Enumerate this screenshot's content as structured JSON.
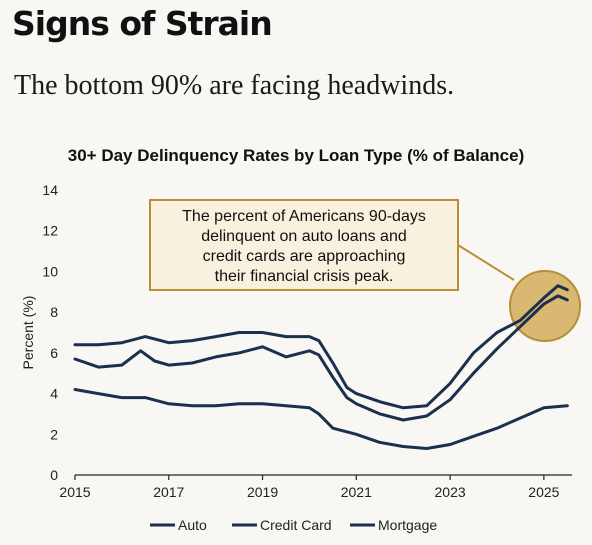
{
  "headline": "Signs of Strain",
  "subheadline": "The bottom 90% are facing headwinds.",
  "colors": {
    "line": "#1b2f4e",
    "highlight_fill": "#d4ad5a",
    "highlight_stroke": "#b88f38",
    "callout_border": "#b88f38",
    "callout_fill": "#f7f1de"
  },
  "callout": {
    "lines": [
      "The percent of Americans 90-days",
      "delinquent on auto loans and",
      "credit cards are approaching",
      "their financial crisis peak."
    ]
  },
  "chart_data": {
    "type": "line",
    "title": "30+ Day Delinquency Rates by Loan Type (% of Balance)",
    "xlabel": "",
    "ylabel": "Percent (%)",
    "xlim": [
      2015,
      2025.6
    ],
    "ylim": [
      0,
      14
    ],
    "x_ticks": [
      "2015",
      "2017",
      "2019",
      "2021",
      "2023",
      "2025"
    ],
    "y_ticks": [
      "0",
      "2",
      "4",
      "6",
      "8",
      "10",
      "12",
      "14"
    ],
    "grid": false,
    "legend_position": "bottom",
    "series": [
      {
        "name": "Auto",
        "points": [
          [
            2015,
            6.4
          ],
          [
            2015.5,
            6.4
          ],
          [
            2016,
            6.5
          ],
          [
            2016.5,
            6.8
          ],
          [
            2017,
            6.5
          ],
          [
            2017.5,
            6.6
          ],
          [
            2018,
            6.8
          ],
          [
            2018.5,
            7.0
          ],
          [
            2019,
            7.0
          ],
          [
            2019.5,
            6.8
          ],
          [
            2020,
            6.8
          ],
          [
            2020.2,
            6.6
          ],
          [
            2020.5,
            5.5
          ],
          [
            2020.8,
            4.3
          ],
          [
            2021,
            4.0
          ],
          [
            2021.5,
            3.6
          ],
          [
            2022,
            3.3
          ],
          [
            2022.5,
            3.4
          ],
          [
            2023,
            4.5
          ],
          [
            2023.5,
            6.0
          ],
          [
            2024,
            7.0
          ],
          [
            2024.5,
            7.6
          ],
          [
            2025,
            8.7
          ],
          [
            2025.3,
            9.3
          ],
          [
            2025.5,
            9.1
          ]
        ]
      },
      {
        "name": "Credit Card",
        "points": [
          [
            2015,
            5.7
          ],
          [
            2015.5,
            5.3
          ],
          [
            2016,
            5.4
          ],
          [
            2016.4,
            6.1
          ],
          [
            2016.7,
            5.6
          ],
          [
            2017,
            5.4
          ],
          [
            2017.5,
            5.5
          ],
          [
            2018,
            5.8
          ],
          [
            2018.5,
            6.0
          ],
          [
            2019,
            6.3
          ],
          [
            2019.5,
            5.8
          ],
          [
            2020,
            6.1
          ],
          [
            2020.2,
            5.9
          ],
          [
            2020.5,
            4.8
          ],
          [
            2020.8,
            3.8
          ],
          [
            2021,
            3.5
          ],
          [
            2021.5,
            3.0
          ],
          [
            2022,
            2.7
          ],
          [
            2022.5,
            2.9
          ],
          [
            2023,
            3.7
          ],
          [
            2023.5,
            5.0
          ],
          [
            2024,
            6.2
          ],
          [
            2024.5,
            7.3
          ],
          [
            2025,
            8.4
          ],
          [
            2025.3,
            8.8
          ],
          [
            2025.5,
            8.6
          ]
        ]
      },
      {
        "name": "Mortgage",
        "points": [
          [
            2015,
            4.2
          ],
          [
            2015.5,
            4.0
          ],
          [
            2016,
            3.8
          ],
          [
            2016.5,
            3.8
          ],
          [
            2017,
            3.5
          ],
          [
            2017.5,
            3.4
          ],
          [
            2018,
            3.4
          ],
          [
            2018.5,
            3.5
          ],
          [
            2019,
            3.5
          ],
          [
            2019.5,
            3.4
          ],
          [
            2020,
            3.3
          ],
          [
            2020.2,
            3.0
          ],
          [
            2020.5,
            2.3
          ],
          [
            2021,
            2.0
          ],
          [
            2021.5,
            1.6
          ],
          [
            2022,
            1.4
          ],
          [
            2022.5,
            1.3
          ],
          [
            2023,
            1.5
          ],
          [
            2023.5,
            1.9
          ],
          [
            2024,
            2.3
          ],
          [
            2024.5,
            2.8
          ],
          [
            2025,
            3.3
          ],
          [
            2025.5,
            3.4
          ]
        ]
      }
    ]
  }
}
